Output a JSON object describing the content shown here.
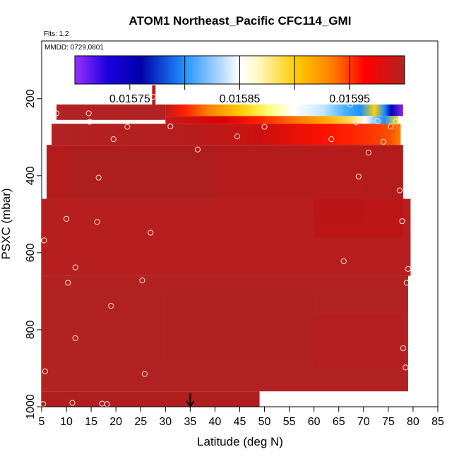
{
  "chart_data": {
    "type": "heatmap",
    "title": "ATOM1 Northeast_Pacific CFC114_GMI",
    "flights_label": "Flts: 1,2",
    "date_label": "MMDD: 0729,0801",
    "xlabel": "Latitude (deg N)",
    "ylabel": "PSXC (mbar)",
    "xlim": [
      5,
      85
    ],
    "ylim": [
      1000,
      50
    ],
    "y_reversed": true,
    "xticks": [
      "5",
      "10",
      "15",
      "20",
      "25",
      "30",
      "35",
      "40",
      "45",
      "50",
      "55",
      "60",
      "65",
      "70",
      "75",
      "80",
      "85"
    ],
    "yticks": [
      "200",
      "400",
      "600",
      "800",
      "1000"
    ],
    "colorbar": {
      "min": 0.0157,
      "max": 0.016,
      "tick_labels": [
        "0.01575",
        "0.01585",
        "0.01595"
      ],
      "tick_values": [
        0.01575,
        0.01585,
        0.01595
      ],
      "colors": [
        "#8a2be2",
        "#0000b0",
        "#1e90ff",
        "#ffffff",
        "#ffe000",
        "#ff8c00",
        "#ff0000",
        "#b22222"
      ]
    },
    "marker": {
      "x": 35,
      "label": "arrow"
    },
    "fill_value": 0.015995,
    "regions": [
      {
        "lat": [
          27.3,
          28.0
        ],
        "p": [
          165,
          215
        ],
        "v": 0.015995
      },
      {
        "lat": [
          8.0,
          30.0
        ],
        "p": [
          215,
          255
        ],
        "v": 0.015995
      },
      {
        "lat": [
          30.0,
          78.0
        ],
        "p": [
          215,
          245
        ],
        "v": "gradient_top"
      },
      {
        "lat": [
          30.0,
          77.0
        ],
        "p": [
          245,
          265
        ],
        "v": "gradient_mid"
      },
      {
        "lat": [
          7.0,
          77.5
        ],
        "p": [
          265,
          320
        ],
        "v": "gradient_low"
      },
      {
        "lat": [
          6.0,
          78.0
        ],
        "p": [
          320,
          460
        ],
        "v": 0.015992
      },
      {
        "lat": [
          5.0,
          79.5
        ],
        "p": [
          460,
          660
        ],
        "v": 0.015994
      },
      {
        "lat": [
          5.0,
          79.0
        ],
        "p": [
          660,
          960
        ],
        "v": 0.015995
      },
      {
        "lat": [
          5.0,
          49.0
        ],
        "p": [
          960,
          1000
        ],
        "v": 0.015996
      }
    ],
    "points": [
      {
        "lat": 8.0,
        "p": 238
      },
      {
        "lat": 14.5,
        "p": 238
      },
      {
        "lat": 14.7,
        "p": 260
      },
      {
        "lat": 19.5,
        "p": 305
      },
      {
        "lat": 22.3,
        "p": 273
      },
      {
        "lat": 27.5,
        "p": 195
      },
      {
        "lat": 31.0,
        "p": 272
      },
      {
        "lat": 36.5,
        "p": 332
      },
      {
        "lat": 44.5,
        "p": 298
      },
      {
        "lat": 50.0,
        "p": 273
      },
      {
        "lat": 63.5,
        "p": 305
      },
      {
        "lat": 67.3,
        "p": 215
      },
      {
        "lat": 68.5,
        "p": 262
      },
      {
        "lat": 71.0,
        "p": 340
      },
      {
        "lat": 72.8,
        "p": 258
      },
      {
        "lat": 74.0,
        "p": 312
      },
      {
        "lat": 75.5,
        "p": 272
      },
      {
        "lat": 76.5,
        "p": 260
      },
      {
        "lat": 16.5,
        "p": 405
      },
      {
        "lat": 69.0,
        "p": 402
      },
      {
        "lat": 77.3,
        "p": 438
      },
      {
        "lat": 10.0,
        "p": 512
      },
      {
        "lat": 16.2,
        "p": 520
      },
      {
        "lat": 27.0,
        "p": 548
      },
      {
        "lat": 77.8,
        "p": 518
      },
      {
        "lat": 5.5,
        "p": 568
      },
      {
        "lat": 11.8,
        "p": 638
      },
      {
        "lat": 66.0,
        "p": 622
      },
      {
        "lat": 79.0,
        "p": 642
      },
      {
        "lat": 10.3,
        "p": 678
      },
      {
        "lat": 25.3,
        "p": 672
      },
      {
        "lat": 78.7,
        "p": 678
      },
      {
        "lat": 19.0,
        "p": 738
      },
      {
        "lat": 11.8,
        "p": 822
      },
      {
        "lat": 78.0,
        "p": 848
      },
      {
        "lat": 5.7,
        "p": 908
      },
      {
        "lat": 25.8,
        "p": 915
      },
      {
        "lat": 78.5,
        "p": 898
      },
      {
        "lat": 5.3,
        "p": 993
      },
      {
        "lat": 11.2,
        "p": 990
      },
      {
        "lat": 17.2,
        "p": 992
      },
      {
        "lat": 18.2,
        "p": 993
      }
    ]
  }
}
